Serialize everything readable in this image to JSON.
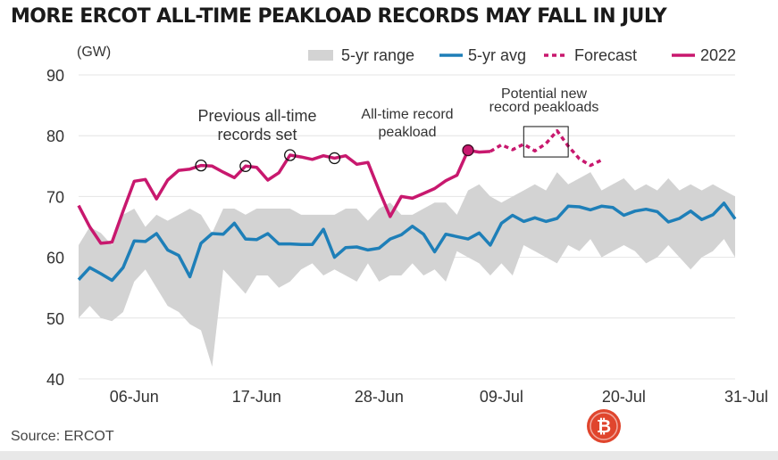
{
  "chart_data": {
    "type": "line",
    "title": "MORE ERCOT ALL-TIME PEAKLOAD RECORDS MAY FALL IN JULY",
    "ylabel": "(GW)",
    "xlabel": "",
    "ylim": [
      40,
      90
    ],
    "yticks": [
      40,
      50,
      60,
      70,
      80,
      90
    ],
    "xlim": [
      1,
      60
    ],
    "xticks": [
      {
        "label": "06-Jun",
        "x": 6
      },
      {
        "label": "17-Jun",
        "x": 17
      },
      {
        "label": "28-Jun",
        "x": 28
      },
      {
        "label": "09-Jul",
        "x": 39
      },
      {
        "label": "20-Jul",
        "x": 50
      },
      {
        "label": "31-Jul",
        "x": 61
      }
    ],
    "legend": {
      "position": "top-right",
      "items": [
        {
          "label": "5-yr range",
          "style": "band",
          "color": "#d3d3d3"
        },
        {
          "label": "5-yr avg",
          "style": "line",
          "color": "#1e7fb8"
        },
        {
          "label": "Forecast",
          "style": "dashed",
          "color": "#c8186e"
        },
        {
          "label": "2022",
          "style": "line",
          "color": "#c8186e"
        }
      ]
    },
    "range": {
      "name": "5-yr range",
      "x": [
        1,
        2,
        3,
        4,
        5,
        6,
        7,
        8,
        9,
        10,
        11,
        12,
        13,
        14,
        15,
        16,
        17,
        18,
        19,
        20,
        21,
        22,
        23,
        24,
        25,
        26,
        27,
        28,
        29,
        30,
        31,
        32,
        33,
        34,
        35,
        36,
        37,
        38,
        39,
        40,
        41,
        42,
        43,
        44,
        45,
        46,
        47,
        48,
        49,
        50,
        51,
        52,
        53,
        54,
        55,
        56,
        57,
        58,
        59,
        60
      ],
      "low": [
        50,
        52,
        50,
        49.5,
        51,
        56,
        58,
        55,
        52,
        51,
        49,
        48,
        42,
        58,
        56,
        54,
        57,
        57,
        55,
        56,
        58,
        59,
        57,
        58,
        57,
        56,
        59,
        56,
        57,
        57,
        59,
        57,
        58,
        56,
        61,
        60,
        59,
        57,
        59,
        57,
        62,
        61,
        60,
        59,
        62,
        61,
        63,
        60,
        61,
        62,
        61,
        59,
        60,
        62,
        60,
        58,
        60,
        61,
        63,
        60
      ],
      "high": [
        62,
        65,
        64,
        62,
        67,
        68,
        65,
        67,
        66,
        67,
        68,
        67,
        64,
        68,
        68,
        67,
        68,
        68,
        68,
        68,
        67,
        67,
        67,
        67,
        68,
        68,
        66,
        68,
        69,
        67,
        67,
        68,
        69,
        69,
        67,
        71,
        72,
        70,
        69,
        70,
        71,
        72,
        71,
        74,
        72,
        73,
        74,
        71,
        72,
        73,
        71,
        72,
        71,
        73,
        71,
        72,
        71,
        72,
        71,
        70
      ]
    },
    "series": [
      {
        "name": "5-yr avg",
        "color": "#1e7fb8",
        "x": [
          1,
          2,
          3,
          4,
          5,
          6,
          7,
          8,
          9,
          10,
          11,
          12,
          13,
          14,
          15,
          16,
          17,
          18,
          19,
          20,
          21,
          22,
          23,
          24,
          25,
          26,
          27,
          28,
          29,
          30,
          31,
          32,
          33,
          34,
          35,
          36,
          37,
          38,
          39,
          40,
          41,
          42,
          43,
          44,
          45,
          46,
          47,
          48,
          49,
          50,
          51,
          52,
          53,
          54,
          55,
          56,
          57,
          58,
          59,
          60
        ],
        "y": [
          56.3,
          58.3,
          57.3,
          56.2,
          58.3,
          62.7,
          62.6,
          63.9,
          61.2,
          60.3,
          56.8,
          62.3,
          63.9,
          63.8,
          65.6,
          63.0,
          62.9,
          63.9,
          62.2,
          62.2,
          62.1,
          62.1,
          64.6,
          60.0,
          61.6,
          61.7,
          61.2,
          61.5,
          63.0,
          63.7,
          65.1,
          63.8,
          60.9,
          63.8,
          63.4,
          63.0,
          64.0,
          62.0,
          65.6,
          66.9,
          65.9,
          66.5,
          65.9,
          66.4,
          68.4,
          68.3,
          67.8,
          68.4,
          68.2,
          66.9,
          67.6,
          67.9,
          67.5,
          65.8,
          66.4,
          67.6,
          66.2,
          67.0,
          68.9,
          66.3
        ]
      },
      {
        "name": "2022",
        "color": "#c8186e",
        "x": [
          1,
          2,
          3,
          4,
          5,
          6,
          7,
          8,
          9,
          10,
          11,
          12,
          13,
          14,
          15,
          16,
          17,
          18,
          19,
          20,
          21,
          22,
          23,
          24,
          25,
          26,
          27,
          28,
          29,
          30,
          31,
          32,
          33,
          34,
          35,
          36,
          37,
          38
        ],
        "y": [
          68.5,
          65.0,
          62.3,
          62.5,
          67.6,
          72.5,
          72.8,
          69.6,
          72.7,
          74.3,
          74.5,
          75.1,
          75.0,
          74.0,
          73.1,
          75.0,
          74.8,
          72.7,
          73.9,
          76.8,
          76.5,
          76.1,
          76.7,
          76.3,
          76.7,
          75.3,
          75.6,
          71.0,
          66.7,
          70.0,
          69.7,
          70.5,
          71.3,
          72.6,
          73.5,
          77.6,
          77.3,
          77.4
        ]
      },
      {
        "name": "Forecast",
        "color": "#c8186e",
        "dashed": true,
        "x": [
          38,
          39,
          40,
          41,
          42,
          43,
          44,
          45,
          46,
          47,
          48
        ],
        "y": [
          77.4,
          78.5,
          77.7,
          78.6,
          77.5,
          78.7,
          80.8,
          78.3,
          76.2,
          75.1,
          76.0
        ]
      }
    ],
    "markers": [
      {
        "x": 12,
        "y": 75.1,
        "style": "open-circle",
        "color": "#111111"
      },
      {
        "x": 16,
        "y": 75.0,
        "style": "open-circle",
        "color": "#111111"
      },
      {
        "x": 20,
        "y": 76.8,
        "style": "open-circle",
        "color": "#111111"
      },
      {
        "x": 24,
        "y": 76.3,
        "style": "open-circle",
        "color": "#111111"
      },
      {
        "x": 36,
        "y": 77.6,
        "style": "filled-circle",
        "color": "#c8186e"
      }
    ],
    "annotations": [
      {
        "text": "Previous all-time records set",
        "lines": [
          "Previous all-time",
          "records set"
        ]
      },
      {
        "text": "All-time record peakload",
        "lines": [
          "All-time record",
          "peakload"
        ]
      },
      {
        "text": "Potential new record peakloads",
        "lines": [
          "Potential new",
          "record peakloads"
        ]
      }
    ],
    "callout_box": {
      "x_range": [
        41,
        45
      ],
      "y_range": [
        76.5,
        81.5
      ]
    },
    "grid": {
      "horizontal": true,
      "vertical": false,
      "color": "#e4e4e4"
    }
  },
  "source": "Source: ERCOT"
}
